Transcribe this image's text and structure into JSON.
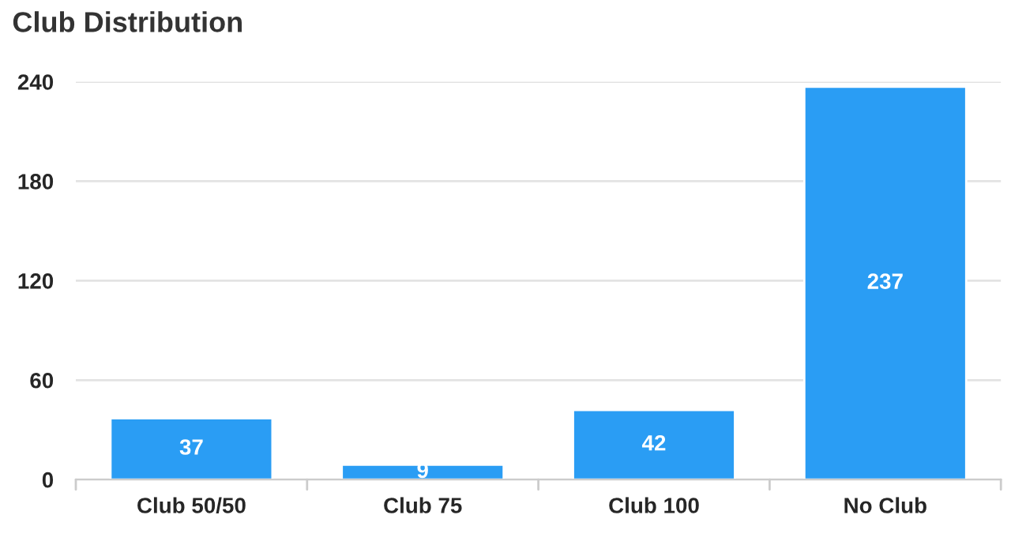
{
  "chart_data": {
    "type": "bar",
    "title": "Club Distribution",
    "categories": [
      "Club 50/50",
      "Club 75",
      "Club 100",
      "No Club"
    ],
    "values": [
      37,
      9,
      42,
      237
    ],
    "color": "#2a9df4",
    "ylim": [
      0,
      240
    ],
    "yticks": [
      0,
      60,
      120,
      180,
      240
    ],
    "grid": "y",
    "data_labels": true,
    "legend": false
  }
}
